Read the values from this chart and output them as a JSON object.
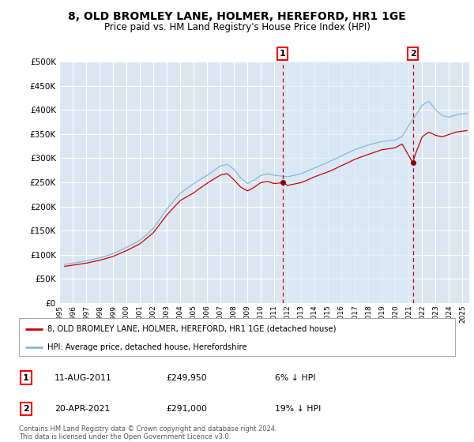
{
  "title": "8, OLD BROMLEY LANE, HOLMER, HEREFORD, HR1 1GE",
  "subtitle": "Price paid vs. HM Land Registry's House Price Index (HPI)",
  "ylim": [
    0,
    500000
  ],
  "yticks": [
    0,
    50000,
    100000,
    150000,
    200000,
    250000,
    300000,
    350000,
    400000,
    450000,
    500000
  ],
  "ytick_labels": [
    "£0",
    "£50K",
    "£100K",
    "£150K",
    "£200K",
    "£250K",
    "£300K",
    "£350K",
    "£400K",
    "£450K",
    "£500K"
  ],
  "xlim_start": 1995.4,
  "xlim_end": 2025.5,
  "plot_bg_color": "#dce6f1",
  "shade_bg_color": "#daeaf8",
  "fig_bg_color": "#ffffff",
  "grid_color": "#ffffff",
  "hpi_line_color": "#85b8d8",
  "property_line_color": "#cc0000",
  "sale1_x": 2011.62,
  "sale1_y": 249950,
  "sale1_label": "1",
  "sale1_date": "11-AUG-2011",
  "sale1_price": "£249,950",
  "sale1_note": "6% ↓ HPI",
  "sale2_x": 2021.3,
  "sale2_y": 291000,
  "sale2_label": "2",
  "sale2_date": "20-APR-2021",
  "sale2_price": "£291,000",
  "sale2_note": "19% ↓ HPI",
  "legend_line1": "8, OLD BROMLEY LANE, HOLMER, HEREFORD, HR1 1GE (detached house)",
  "legend_line2": "HPI: Average price, detached house, Herefordshire",
  "footer1": "Contains HM Land Registry data © Crown copyright and database right 2024.",
  "footer2": "This data is licensed under the Open Government Licence v3.0."
}
